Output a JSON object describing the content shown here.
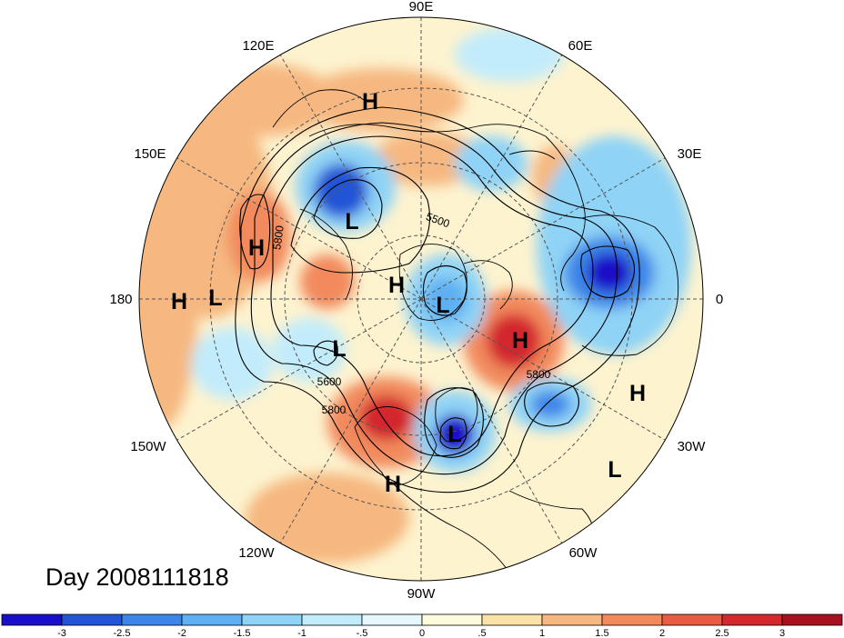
{
  "map": {
    "projection": "polar stereographic, northern hemisphere",
    "longitude_labels": [
      {
        "name": "90E",
        "text": "90E"
      },
      {
        "name": "60E",
        "text": "60E"
      },
      {
        "name": "30E",
        "text": "30E"
      },
      {
        "name": "0",
        "text": "0"
      },
      {
        "name": "30W",
        "text": "30W"
      },
      {
        "name": "60W",
        "text": "60W"
      },
      {
        "name": "90W",
        "text": "90W"
      },
      {
        "name": "120W",
        "text": "120W"
      },
      {
        "name": "150W",
        "text": "150W"
      },
      {
        "name": "180",
        "text": "180"
      },
      {
        "name": "150E",
        "text": "150E"
      },
      {
        "name": "120E",
        "text": "120E"
      }
    ],
    "pressure_centers": [
      {
        "name": "h-east-siberia",
        "text": "H"
      },
      {
        "name": "l-northeast-asia",
        "text": "L"
      },
      {
        "name": "h-north-pacific",
        "text": "H"
      },
      {
        "name": "h-dateline",
        "text": "H"
      },
      {
        "name": "l-dateline",
        "text": "L"
      },
      {
        "name": "h-arctic",
        "text": "H"
      },
      {
        "name": "l-arctic",
        "text": "L"
      },
      {
        "name": "l-alaska",
        "text": "L"
      },
      {
        "name": "h-greenland",
        "text": "H"
      },
      {
        "name": "l-eastern-us",
        "text": "L"
      },
      {
        "name": "h-mexico",
        "text": "H"
      },
      {
        "name": "h-mid-atlantic",
        "text": "H"
      },
      {
        "name": "l-south-atlantic",
        "text": "L"
      }
    ],
    "contour_labels": [
      "5500",
      "5800",
      "5600",
      "5800",
      "5800"
    ],
    "contour_color": "#000000",
    "coastline_color": "#000000"
  },
  "title": "Day 2008111818",
  "colorbar": {
    "colors": [
      "#1a0fc8",
      "#2454d6",
      "#3d86e8",
      "#5fb0f2",
      "#8fd3f6",
      "#c2ecfb",
      "#e6f8fd",
      "#fefadc",
      "#fbe2a8",
      "#f6b880",
      "#f28a5d",
      "#ea5b44",
      "#d3282e",
      "#a9101f"
    ],
    "labels": [
      "-3",
      "-2.5",
      "-2",
      "-1.5",
      "-1",
      "-.5",
      "0",
      ".5",
      "1",
      "1.5",
      "2",
      "2.5",
      "3"
    ]
  }
}
